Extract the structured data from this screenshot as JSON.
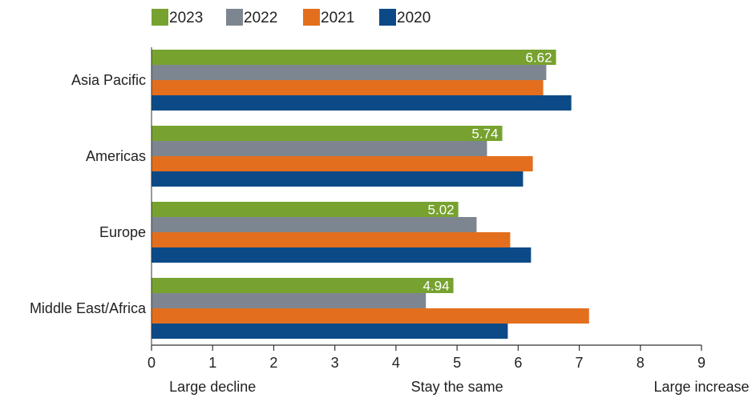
{
  "chart_data": {
    "type": "bar",
    "orientation": "horizontal",
    "categories": [
      "Asia Pacific",
      "Americas",
      "Europe",
      "Middle East/Africa"
    ],
    "series": [
      {
        "name": "2023",
        "color": "#77a22f",
        "values": [
          6.62,
          5.74,
          5.02,
          4.94
        ],
        "labels": [
          "6.62",
          "5.74",
          "5.02",
          "4.94"
        ]
      },
      {
        "name": "2022",
        "color": "#7d8690",
        "values": [
          6.46,
          5.49,
          5.32,
          4.49
        ]
      },
      {
        "name": "2021",
        "color": "#e36f1e",
        "values": [
          6.41,
          6.24,
          5.87,
          7.16
        ]
      },
      {
        "name": "2020",
        "color": "#0b4a87",
        "values": [
          6.87,
          6.08,
          6.21,
          5.83
        ]
      }
    ],
    "xlim": [
      0,
      9
    ],
    "xticks": [
      "0",
      "1",
      "2",
      "3",
      "4",
      "5",
      "6",
      "7",
      "8",
      "9"
    ],
    "scale_labels": [
      {
        "value": 1,
        "text": "Large decline"
      },
      {
        "value": 5,
        "text": "Stay the same"
      },
      {
        "value": 9,
        "text": "Large increase"
      }
    ],
    "legend_position": "top-left",
    "grid": false
  }
}
